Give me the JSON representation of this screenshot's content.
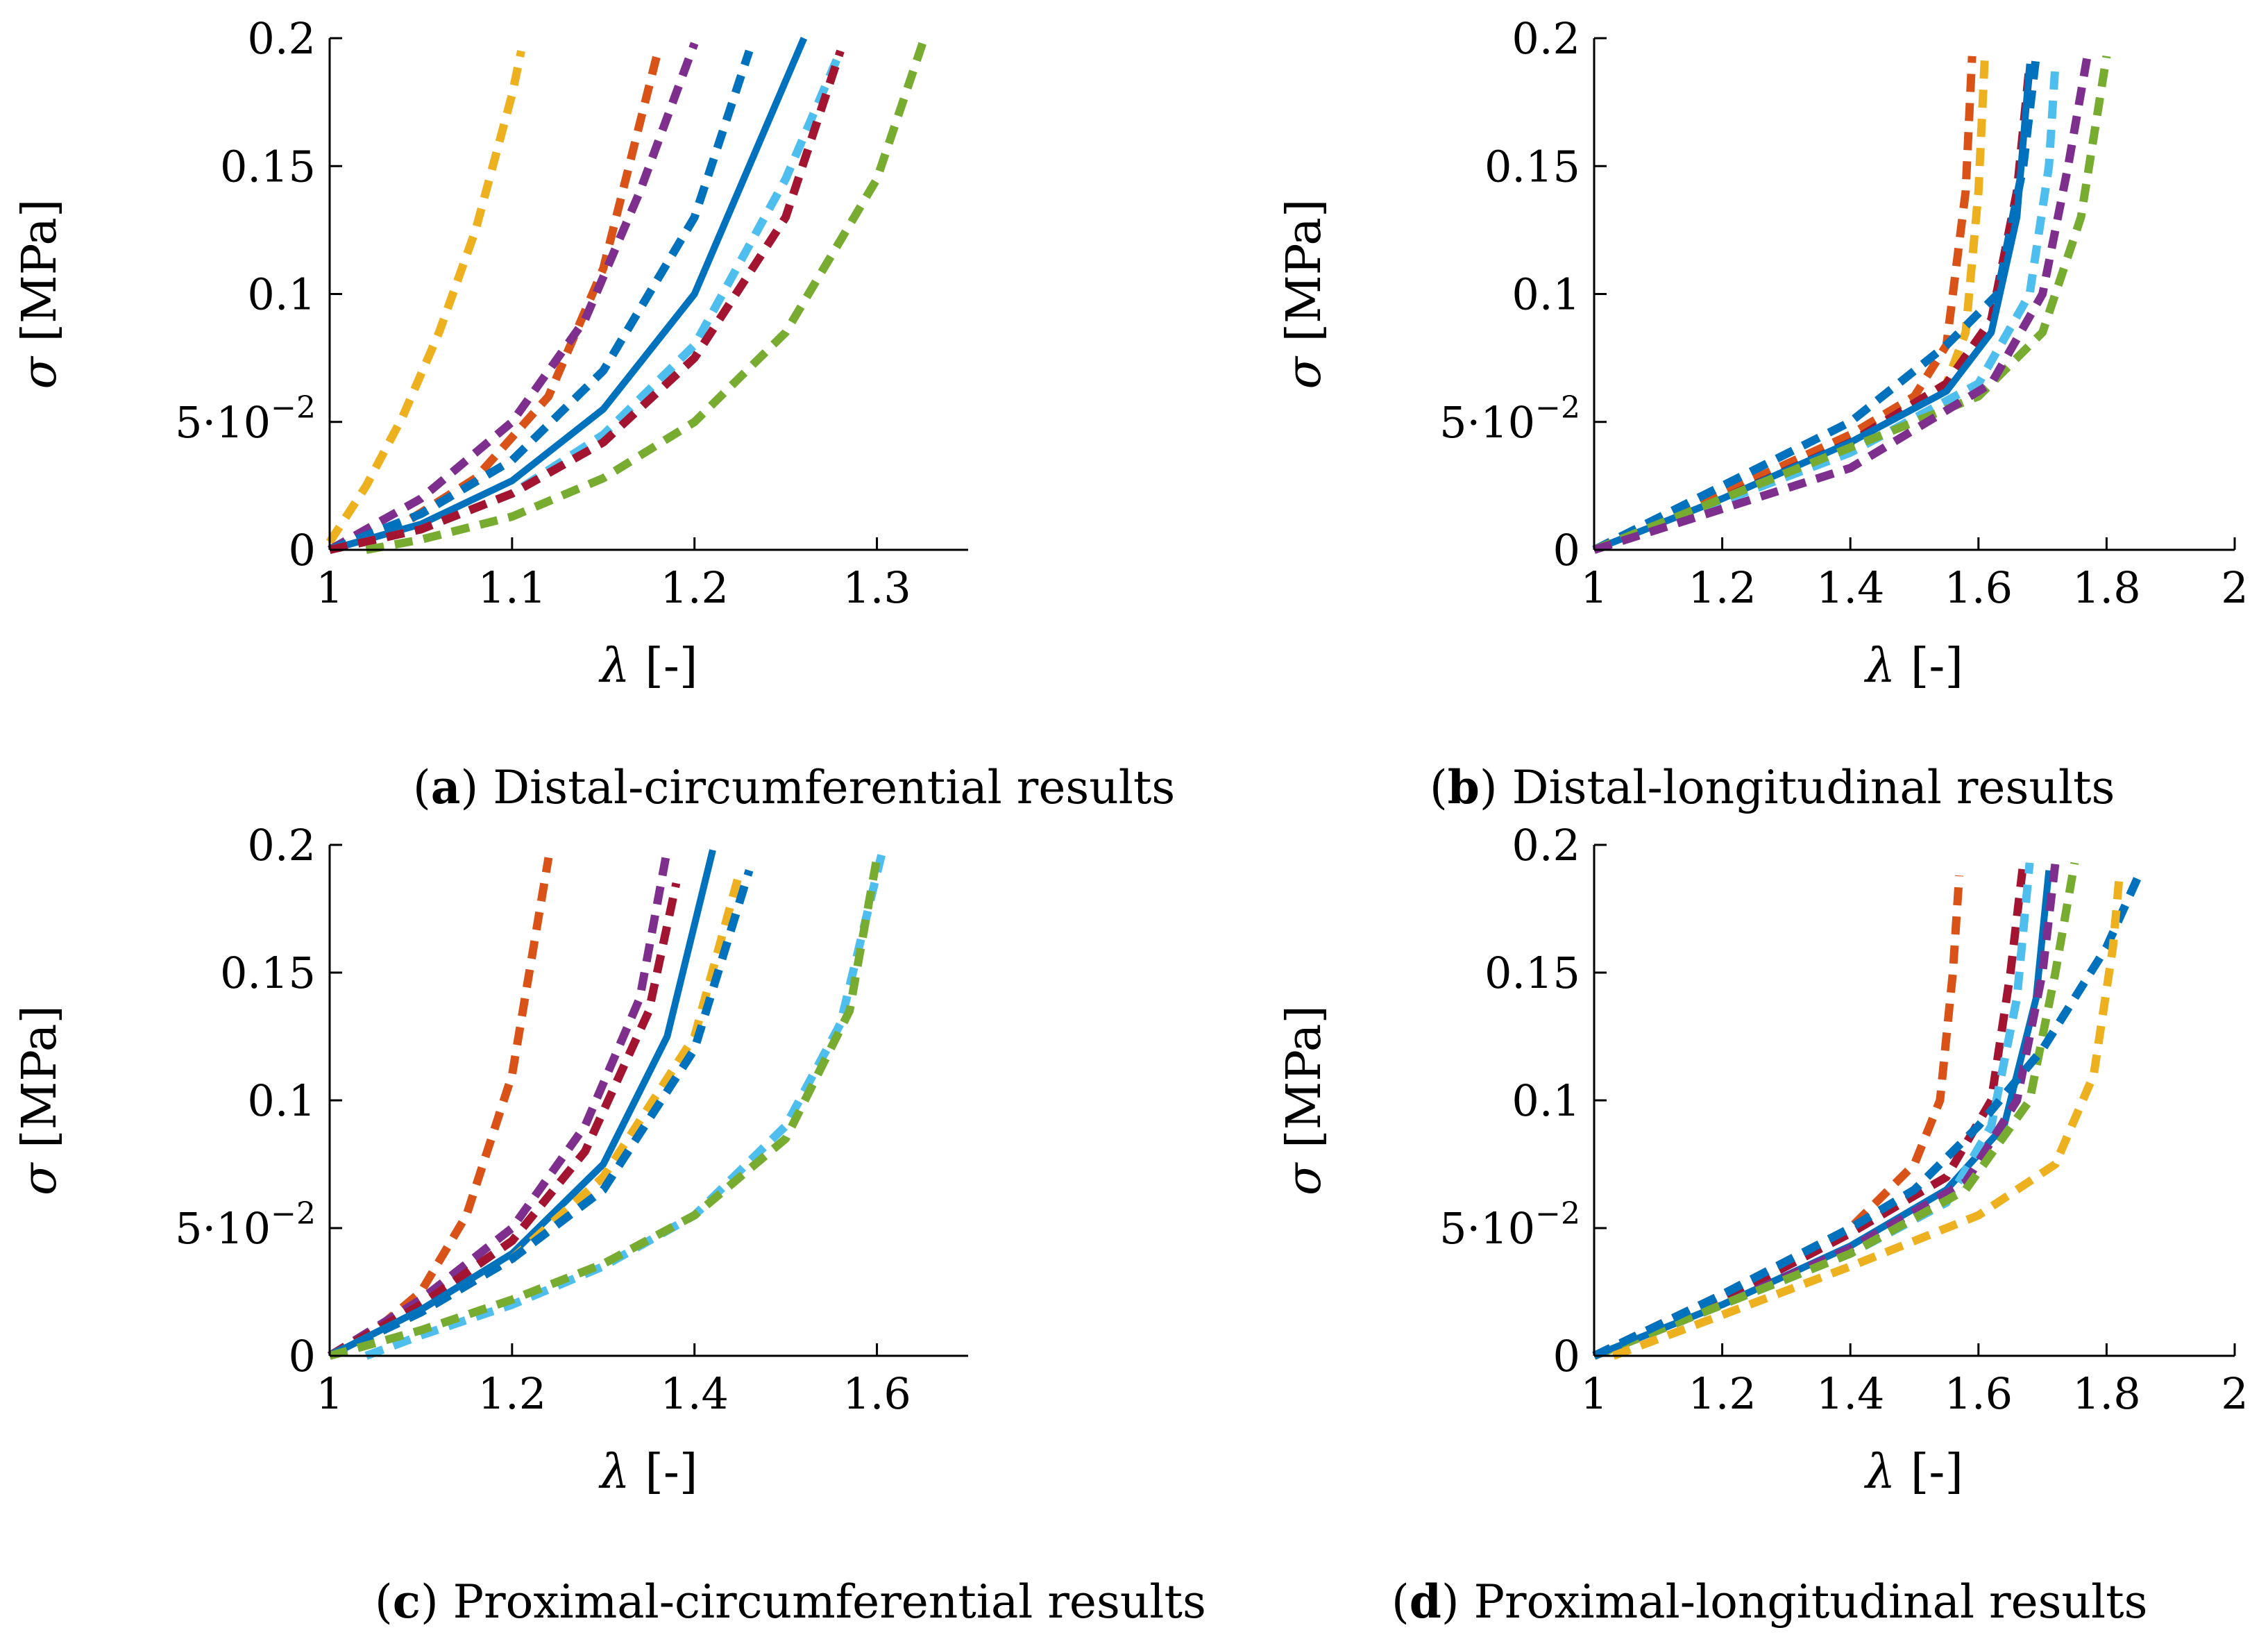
{
  "panels": [
    {
      "caption": {
        "open": "(",
        "letter": "a",
        "close": ")",
        "text": " Distal-circumferential results"
      },
      "chart_data": {
        "type": "line",
        "xlabel_symbol": "λ",
        "xlabel_unit": " [-]",
        "ylabel_symbol": "σ",
        "ylabel_unit": " [MPa]",
        "xlim": [
          1,
          1.35
        ],
        "ylim": [
          0,
          0.2
        ],
        "xticks": [
          {
            "v": 1,
            "t": "1"
          },
          {
            "v": 1.1,
            "t": "1.1"
          },
          {
            "v": 1.2,
            "t": "1.2"
          },
          {
            "v": 1.3,
            "t": "1.3"
          }
        ],
        "yticks": [
          {
            "v": 0,
            "t": "0"
          },
          {
            "v": 0.05,
            "t": "5·10",
            "sup": "−2"
          },
          {
            "v": 0.1,
            "t": "0.1"
          },
          {
            "v": 0.15,
            "t": "0.15"
          },
          {
            "v": 0.2,
            "t": "0.2"
          }
        ],
        "series": [
          {
            "color": "#EDB120",
            "dashed": true,
            "x": [
              1,
              1.02,
              1.04,
              1.06,
              1.08,
              1.1,
              1.105
            ],
            "y": [
              0.003,
              0.025,
              0.052,
              0.085,
              0.125,
              0.178,
              0.195
            ]
          },
          {
            "color": "#D95319",
            "dashed": true,
            "x": [
              1,
              1.04,
              1.08,
              1.12,
              1.15,
              1.18
            ],
            "y": [
              0,
              0.01,
              0.028,
              0.06,
              0.11,
              0.195
            ]
          },
          {
            "color": "#7E2F8E",
            "dashed": true,
            "x": [
              1,
              1.05,
              1.1,
              1.14,
              1.17,
              1.2
            ],
            "y": [
              0,
              0.02,
              0.05,
              0.09,
              0.14,
              0.198
            ]
          },
          {
            "color": "#0072BD",
            "dashed": true,
            "x": [
              1,
              1.05,
              1.1,
              1.15,
              1.2,
              1.23
            ],
            "y": [
              0,
              0.014,
              0.035,
              0.07,
              0.13,
              0.195
            ]
          },
          {
            "color": "#0072BD",
            "dashed": false,
            "x": [
              1,
              1.05,
              1.1,
              1.15,
              1.2,
              1.26
            ],
            "y": [
              0,
              0.01,
              0.027,
              0.055,
              0.1,
              0.2
            ]
          },
          {
            "color": "#4DBEEE",
            "dashed": true,
            "x": [
              1,
              1.05,
              1.1,
              1.15,
              1.2,
              1.25,
              1.28
            ],
            "y": [
              0,
              0.008,
              0.022,
              0.045,
              0.08,
              0.145,
              0.195
            ]
          },
          {
            "color": "#A2142F",
            "dashed": true,
            "x": [
              1,
              1.05,
              1.1,
              1.15,
              1.2,
              1.25,
              1.28
            ],
            "y": [
              0,
              0.008,
              0.022,
              0.042,
              0.075,
              0.13,
              0.195
            ]
          },
          {
            "color": "#77AC30",
            "dashed": true,
            "x": [
              1.02,
              1.05,
              1.1,
              1.15,
              1.2,
              1.25,
              1.3,
              1.325
            ],
            "y": [
              0,
              0.004,
              0.013,
              0.028,
              0.05,
              0.085,
              0.145,
              0.198
            ]
          }
        ]
      }
    },
    {
      "caption": {
        "open": "(",
        "letter": "b",
        "close": ")",
        "text": " Distal-longitudinal results"
      },
      "chart_data": {
        "type": "line",
        "xlabel_symbol": "λ",
        "xlabel_unit": " [-]",
        "ylabel_symbol": "σ",
        "ylabel_unit": " [MPa]",
        "xlim": [
          1,
          2
        ],
        "ylim": [
          0,
          0.2
        ],
        "xticks": [
          {
            "v": 1,
            "t": "1"
          },
          {
            "v": 1.2,
            "t": "1.2"
          },
          {
            "v": 1.4,
            "t": "1.4"
          },
          {
            "v": 1.6,
            "t": "1.6"
          },
          {
            "v": 1.8,
            "t": "1.8"
          },
          {
            "v": 2,
            "t": "2"
          }
        ],
        "yticks": [
          {
            "v": 0,
            "t": "0"
          },
          {
            "v": 0.05,
            "t": "5·10",
            "sup": "−2"
          },
          {
            "v": 0.1,
            "t": "0.1"
          },
          {
            "v": 0.15,
            "t": "0.15"
          },
          {
            "v": 0.2,
            "t": "0.2"
          }
        ],
        "series": [
          {
            "color": "#D95319",
            "dashed": true,
            "x": [
              1,
              1.2,
              1.4,
              1.5,
              1.55,
              1.58,
              1.59
            ],
            "y": [
              0,
              0.022,
              0.045,
              0.06,
              0.08,
              0.14,
              0.193
            ]
          },
          {
            "color": "#EDB120",
            "dashed": true,
            "x": [
              1,
              1.2,
              1.4,
              1.55,
              1.58,
              1.6,
              1.61
            ],
            "y": [
              0,
              0.02,
              0.042,
              0.065,
              0.085,
              0.14,
              0.193
            ]
          },
          {
            "color": "#A2142F",
            "dashed": true,
            "x": [
              1,
              1.2,
              1.4,
              1.55,
              1.62,
              1.66,
              1.68
            ],
            "y": [
              0,
              0.02,
              0.042,
              0.065,
              0.09,
              0.14,
              0.19
            ]
          },
          {
            "color": "#0072BD",
            "dashed": true,
            "x": [
              1,
              1.2,
              1.4,
              1.55,
              1.63,
              1.67,
              1.69
            ],
            "y": [
              0,
              0.025,
              0.05,
              0.08,
              0.1,
              0.15,
              0.193
            ]
          },
          {
            "color": "#0072BD",
            "dashed": false,
            "x": [
              1,
              1.2,
              1.4,
              1.55,
              1.62,
              1.66,
              1.68
            ],
            "y": [
              0,
              0.02,
              0.042,
              0.062,
              0.085,
              0.13,
              0.19
            ]
          },
          {
            "color": "#4DBEEE",
            "dashed": true,
            "x": [
              1,
              1.2,
              1.4,
              1.6,
              1.68,
              1.71,
              1.72
            ],
            "y": [
              0,
              0.019,
              0.038,
              0.065,
              0.1,
              0.15,
              0.19
            ]
          },
          {
            "color": "#77AC30",
            "dashed": true,
            "x": [
              1,
              1.2,
              1.4,
              1.6,
              1.7,
              1.76,
              1.8
            ],
            "y": [
              0,
              0.02,
              0.04,
              0.06,
              0.085,
              0.13,
              0.193
            ]
          },
          {
            "color": "#7E2F8E",
            "dashed": true,
            "x": [
              1,
              1.2,
              1.4,
              1.62,
              1.7,
              1.74,
              1.77
            ],
            "y": [
              0,
              0.016,
              0.032,
              0.065,
              0.1,
              0.15,
              0.193
            ]
          }
        ]
      }
    },
    {
      "caption": {
        "open": "(",
        "letter": "c",
        "close": ")",
        "text": " Proximal-circumferential results"
      },
      "chart_data": {
        "type": "line",
        "xlabel_symbol": "λ",
        "xlabel_unit": " [-]",
        "ylabel_symbol": "σ",
        "ylabel_unit": " [MPa]",
        "xlim": [
          1,
          1.7
        ],
        "ylim": [
          0,
          0.2
        ],
        "xticks": [
          {
            "v": 1,
            "t": "1"
          },
          {
            "v": 1.2,
            "t": "1.2"
          },
          {
            "v": 1.4,
            "t": "1.4"
          },
          {
            "v": 1.6,
            "t": "1.6"
          }
        ],
        "yticks": [
          {
            "v": 0,
            "t": "0"
          },
          {
            "v": 0.05,
            "t": "5·10",
            "sup": "−2"
          },
          {
            "v": 0.1,
            "t": "0.1"
          },
          {
            "v": 0.15,
            "t": "0.15"
          },
          {
            "v": 0.2,
            "t": "0.2"
          }
        ],
        "series": [
          {
            "color": "#D95319",
            "dashed": true,
            "x": [
              1,
              1.05,
              1.1,
              1.15,
              1.2,
              1.24
            ],
            "y": [
              0,
              0.01,
              0.025,
              0.055,
              0.11,
              0.195
            ]
          },
          {
            "color": "#7E2F8E",
            "dashed": true,
            "x": [
              1,
              1.1,
              1.2,
              1.28,
              1.34,
              1.37
            ],
            "y": [
              0,
              0.022,
              0.05,
              0.09,
              0.14,
              0.198
            ]
          },
          {
            "color": "#A2142F",
            "dashed": true,
            "x": [
              1,
              1.1,
              1.2,
              1.28,
              1.35,
              1.38
            ],
            "y": [
              0,
              0.02,
              0.045,
              0.08,
              0.135,
              0.185
            ]
          },
          {
            "color": "#0072BD",
            "dashed": false,
            "x": [
              1,
              1.1,
              1.2,
              1.3,
              1.37,
              1.42
            ],
            "y": [
              0,
              0.018,
              0.04,
              0.075,
              0.125,
              0.198
            ]
          },
          {
            "color": "#EDB120",
            "dashed": true,
            "x": [
              1,
              1.1,
              1.2,
              1.3,
              1.4,
              1.45
            ],
            "y": [
              0,
              0.017,
              0.038,
              0.07,
              0.125,
              0.19
            ]
          },
          {
            "color": "#0072BD",
            "dashed": true,
            "x": [
              1,
              1.1,
              1.2,
              1.3,
              1.4,
              1.46
            ],
            "y": [
              0,
              0.017,
              0.038,
              0.065,
              0.12,
              0.19
            ]
          },
          {
            "color": "#4DBEEE",
            "dashed": true,
            "x": [
              1.04,
              1.1,
              1.2,
              1.3,
              1.4,
              1.5,
              1.56,
              1.605
            ],
            "y": [
              0,
              0.008,
              0.02,
              0.035,
              0.055,
              0.09,
              0.13,
              0.196
            ]
          },
          {
            "color": "#77AC30",
            "dashed": true,
            "x": [
              1,
              1.1,
              1.2,
              1.3,
              1.4,
              1.5,
              1.57,
              1.6
            ],
            "y": [
              0,
              0.01,
              0.022,
              0.036,
              0.055,
              0.085,
              0.135,
              0.195
            ]
          }
        ]
      }
    },
    {
      "caption": {
        "open": "(",
        "letter": "d",
        "close": ")",
        "text": " Proximal-longitudinal results"
      },
      "chart_data": {
        "type": "line",
        "xlabel_symbol": "λ",
        "xlabel_unit": " [-]",
        "ylabel_symbol": "σ",
        "ylabel_unit": " [MPa]",
        "xlim": [
          1,
          2
        ],
        "ylim": [
          0,
          0.2
        ],
        "xticks": [
          {
            "v": 1,
            "t": "1"
          },
          {
            "v": 1.2,
            "t": "1.2"
          },
          {
            "v": 1.4,
            "t": "1.4"
          },
          {
            "v": 1.6,
            "t": "1.6"
          },
          {
            "v": 1.8,
            "t": "1.8"
          },
          {
            "v": 2,
            "t": "2"
          }
        ],
        "yticks": [
          {
            "v": 0,
            "t": "0"
          },
          {
            "v": 0.05,
            "t": "5·10",
            "sup": "−2"
          },
          {
            "v": 0.1,
            "t": "0.1"
          },
          {
            "v": 0.15,
            "t": "0.15"
          },
          {
            "v": 0.2,
            "t": "0.2"
          }
        ],
        "series": [
          {
            "color": "#D95319",
            "dashed": true,
            "x": [
              1,
              1.2,
              1.4,
              1.5,
              1.54,
              1.56,
              1.57
            ],
            "y": [
              0,
              0.024,
              0.05,
              0.075,
              0.1,
              0.15,
              0.188
            ]
          },
          {
            "color": "#A2142F",
            "dashed": true,
            "x": [
              1,
              1.2,
              1.4,
              1.55,
              1.62,
              1.65,
              1.67
            ],
            "y": [
              0,
              0.022,
              0.048,
              0.07,
              0.1,
              0.15,
              0.193
            ]
          },
          {
            "color": "#0072BD",
            "dashed": false,
            "x": [
              1,
              1.2,
              1.4,
              1.55,
              1.64,
              1.69,
              1.71
            ],
            "y": [
              0,
              0.02,
              0.043,
              0.065,
              0.09,
              0.14,
              0.19
            ]
          },
          {
            "color": "#4DBEEE",
            "dashed": true,
            "x": [
              1,
              1.2,
              1.4,
              1.55,
              1.62,
              1.66,
              1.68
            ],
            "y": [
              0,
              0.02,
              0.04,
              0.06,
              0.09,
              0.14,
              0.193
            ]
          },
          {
            "color": "#7E2F8E",
            "dashed": true,
            "x": [
              1,
              1.2,
              1.4,
              1.58,
              1.66,
              1.7,
              1.72
            ],
            "y": [
              0,
              0.02,
              0.042,
              0.068,
              0.1,
              0.15,
              0.193
            ]
          },
          {
            "color": "#77AC30",
            "dashed": true,
            "x": [
              1,
              1.2,
              1.4,
              1.58,
              1.68,
              1.72,
              1.75
            ],
            "y": [
              0,
              0.02,
              0.04,
              0.065,
              0.1,
              0.15,
              0.193
            ]
          },
          {
            "color": "#0072BD",
            "dashed": true,
            "x": [
              1,
              1.2,
              1.4,
              1.5,
              1.6,
              1.7,
              1.8,
              1.85
            ],
            "y": [
              0,
              0.024,
              0.05,
              0.065,
              0.09,
              0.12,
              0.16,
              0.188
            ]
          },
          {
            "color": "#EDB120",
            "dashed": true,
            "x": [
              1.03,
              1.2,
              1.4,
              1.6,
              1.72,
              1.78,
              1.81,
              1.82
            ],
            "y": [
              0,
              0.016,
              0.035,
              0.055,
              0.075,
              0.11,
              0.16,
              0.188
            ]
          }
        ]
      }
    }
  ]
}
